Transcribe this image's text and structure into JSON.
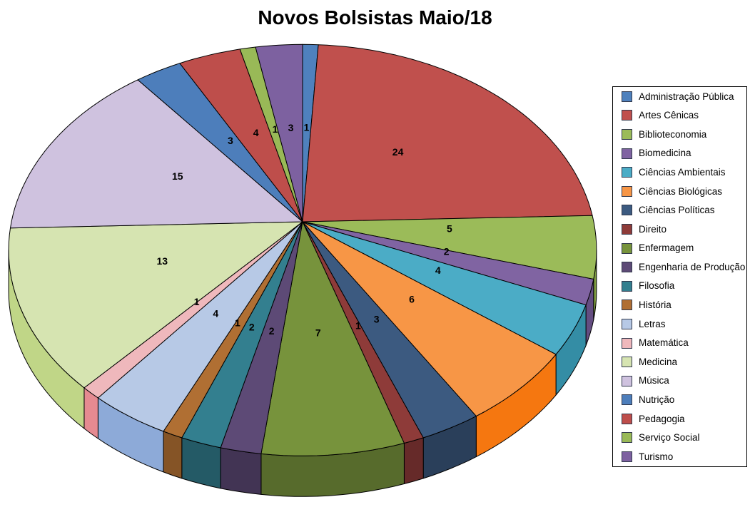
{
  "title": "Novos Bolsistas Maio/18",
  "chart_data": {
    "type": "pie",
    "style": "3d-perspective",
    "title": "Novos Bolsistas Maio/18",
    "start_angle_deg": 0,
    "direction": "clockwise",
    "legend_position": "right",
    "data_labels": "values",
    "total": 102,
    "categories": [
      "Administração Pública",
      "Artes Cênicas",
      "Biblioteconomia",
      "Biomedicina",
      "Ciências Ambientais",
      "Ciências Biológicas",
      "Ciências Políticas",
      "Direito",
      "Enfermagem",
      "Engenharia de Produção",
      "Filosofia",
      "História",
      "Letras",
      "Matemática",
      "Medicina",
      "Música",
      "Nutrição",
      "Pedagogia",
      "Serviço Social",
      "Turismo"
    ],
    "values": [
      1,
      24,
      5,
      2,
      4,
      6,
      3,
      1,
      7,
      2,
      2,
      1,
      4,
      1,
      13,
      15,
      3,
      4,
      1,
      3
    ],
    "colors": [
      "#4F81BD",
      "#C0504D",
      "#9BBB59",
      "#8064A2",
      "#4BACC6",
      "#F79646",
      "#3C5A80",
      "#8E3B39",
      "#77933C",
      "#5D4A76",
      "#337F8F",
      "#B06F33",
      "#B7C9E6",
      "#EFB8BC",
      "#D6E4B1",
      "#CFC2DF",
      "#4D7EBB",
      "#BE4E4B",
      "#99B957",
      "#7D61A0"
    ],
    "background_color": "#FFFFFF",
    "outline_color": "#000000"
  }
}
